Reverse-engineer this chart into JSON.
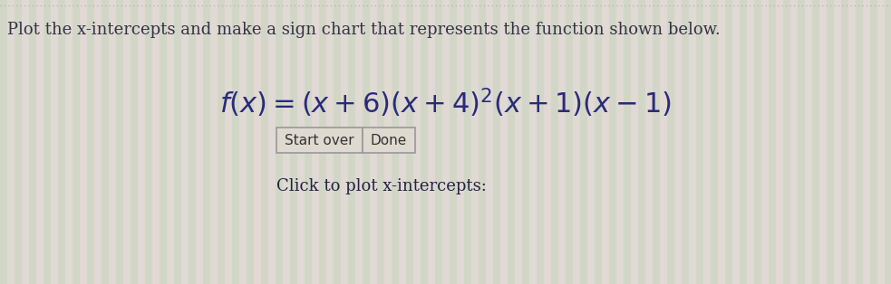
{
  "background_color": "#dedad0",
  "stripe_color_green": "#c8d4c0",
  "stripe_color_pink": "#e8d8d8",
  "top_border_color": "#aaaaaa",
  "instruction_text": "Plot the x-intercepts and make a sign chart that represents the function shown below.",
  "instruction_fontsize": 13.0,
  "instruction_color": "#333344",
  "formula_color": "#2a2a7a",
  "formula_fontsize": 22,
  "button_start_over": "Start over",
  "button_done": "Done",
  "button_fontsize": 11,
  "button_text_color": "#333333",
  "button_border_color": "#999999",
  "click_text": "Click to plot x-intercepts:",
  "click_fontsize": 13.0,
  "click_color": "#222244",
  "fig_width": 9.83,
  "fig_height": 3.14,
  "dpi": 100
}
